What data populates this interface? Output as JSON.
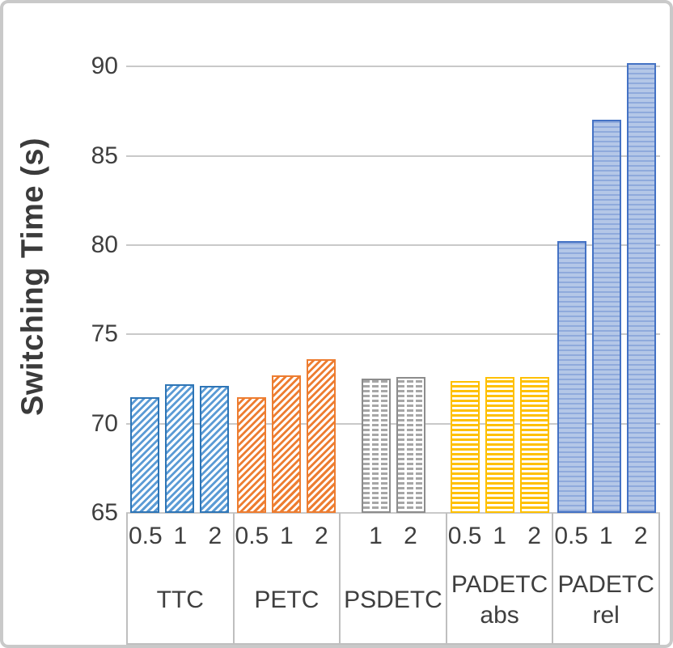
{
  "chart_data": {
    "type": "bar",
    "title": "",
    "xlabel": "",
    "ylabel": "Switching Time (s)",
    "ylim": [
      65,
      91.5
    ],
    "yticks": [
      65,
      70,
      75,
      80,
      85,
      90
    ],
    "grid": true,
    "legend": "none",
    "groups": [
      {
        "label": "TTC",
        "label_lines": [
          "TTC"
        ],
        "sublabels": [
          "0.5",
          "1",
          "2"
        ],
        "values": [
          71.5,
          72.2,
          72.1
        ],
        "style": "blue-diagonal",
        "pattern": "diagonal-hatch",
        "color": "#2E75B6"
      },
      {
        "label": "PETC",
        "label_lines": [
          "PETC"
        ],
        "sublabels": [
          "0.5",
          "1",
          "2"
        ],
        "values": [
          71.5,
          72.7,
          73.6
        ],
        "style": "orange-diagonal",
        "pattern": "diagonal-hatch",
        "color": "#ED7D31"
      },
      {
        "label": "PSDETC",
        "label_lines": [
          "PSDETC"
        ],
        "sublabels": [
          "1",
          "2"
        ],
        "values": [
          72.5,
          72.6
        ],
        "style": "gray-dashed",
        "pattern": "dashed-horizontal-hatch",
        "color": "#A6A6A6"
      },
      {
        "label": "PADETC abs",
        "label_lines": [
          "PADETC",
          "abs"
        ],
        "sublabels": [
          "0.5",
          "1",
          "2"
        ],
        "values": [
          72.4,
          72.6,
          72.6
        ],
        "style": "yellow-horizontal",
        "pattern": "horizontal-hatch",
        "color": "#FFC000"
      },
      {
        "label": "PADETC rel",
        "label_lines": [
          "PADETC",
          "rel"
        ],
        "sublabels": [
          "0.5",
          "1",
          "2"
        ],
        "values": [
          80.2,
          87.0,
          90.2
        ],
        "style": "blue-solid-lines",
        "pattern": "horizontal-lines-on-solid",
        "color": "#4472C4"
      }
    ],
    "colors": {
      "grid": "#c9c9c9",
      "axis_text": "#3f3f3f",
      "frame_border": "#c9c9c9",
      "background": "#ffffff"
    }
  }
}
